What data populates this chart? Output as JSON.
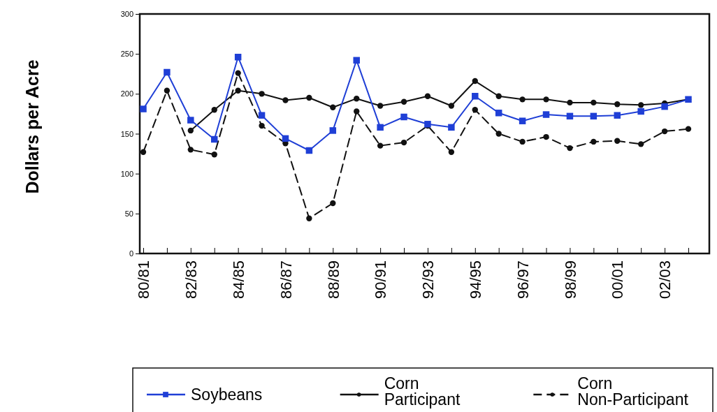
{
  "chart_data": {
    "type": "line",
    "ylabel": "Dollars per Acre",
    "categories": [
      "80/81",
      null,
      "82/83",
      null,
      "84/85",
      null,
      "86/87",
      null,
      "88/89",
      null,
      "90/91",
      null,
      "92/93",
      null,
      "94/95",
      null,
      "96/97",
      null,
      "98/99",
      null,
      "00/01",
      null,
      "02/03",
      null
    ],
    "series": [
      {
        "name": "Soybeans",
        "color": "#1f3fd6",
        "marker": "square",
        "line_style": "solid",
        "values": [
          181,
          227,
          167,
          143,
          246,
          173,
          144,
          129,
          154,
          242,
          158,
          171,
          162,
          158,
          197,
          176,
          166,
          174,
          172,
          172,
          173,
          178,
          184,
          193
        ]
      },
      {
        "name": "Corn Participant",
        "color": "#111111",
        "marker": "circle",
        "line_style": "solid",
        "values": [
          null,
          null,
          154,
          180,
          204,
          200,
          192,
          195,
          183,
          194,
          185,
          190,
          197,
          185,
          216,
          197,
          193,
          193,
          189,
          189,
          187,
          186,
          188,
          193
        ]
      },
      {
        "name": "Corn Non-Participant",
        "color": "#111111",
        "marker": "circle",
        "line_style": "dashed",
        "values": [
          127,
          204,
          130,
          124,
          226,
          160,
          138,
          44,
          63,
          178,
          135,
          139,
          160,
          127,
          180,
          150,
          140,
          146,
          132,
          140,
          141,
          137,
          153,
          156
        ]
      }
    ],
    "ylim": [
      0,
      300
    ],
    "yticks": [
      0,
      50,
      100,
      150,
      200,
      250,
      300
    ],
    "grid": false,
    "legend": "bottom"
  }
}
